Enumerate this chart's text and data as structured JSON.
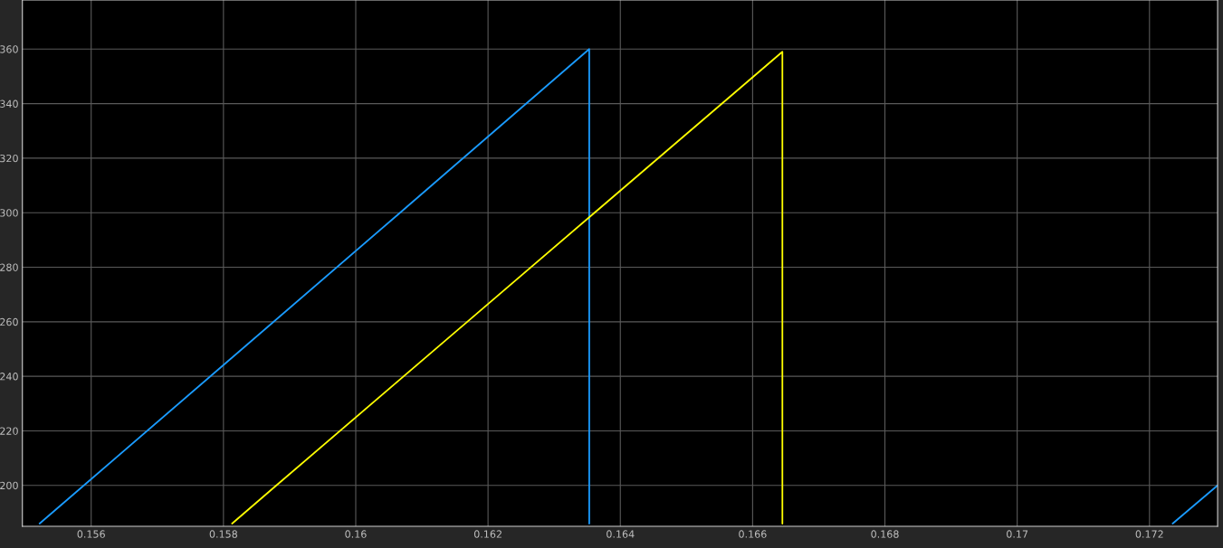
{
  "chart_data": {
    "type": "line",
    "series": [
      {
        "color": "#1a9bff",
        "x": [
          0.15522,
          0.15589,
          0.16067,
          0.16353,
          0.16353,
          null,
          0.17235,
          0.17303
        ],
        "values": [
          186,
          200,
          300,
          360,
          186,
          null,
          186,
          200
        ]
      },
      {
        "color": "#ffff00",
        "x": [
          0.15813,
          0.1588,
          0.16361,
          0.16645,
          0.16645
        ],
        "values": [
          186,
          200,
          300,
          359,
          186
        ]
      }
    ],
    "xlim": [
      0.15496,
      0.17303
    ],
    "ylim": [
      185,
      378
    ],
    "xticks": [
      0.156,
      0.158,
      {
        "value": 0.16,
        "label": "0.16"
      },
      0.162,
      0.164,
      0.166,
      0.168,
      {
        "value": 0.17,
        "label": "0.17"
      },
      0.172
    ],
    "yticks": [
      200,
      220,
      240,
      260,
      280,
      300,
      320,
      340,
      360
    ],
    "grid": true,
    "legend": false,
    "marker": "none",
    "line_style": "solid"
  }
}
